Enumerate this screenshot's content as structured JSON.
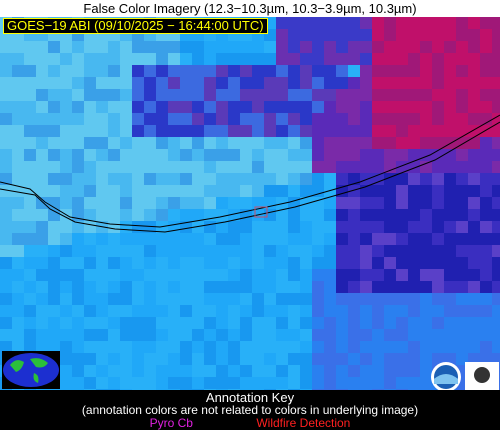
{
  "title": "False Color Imagery (12.3−10.3µm, 10.3−3.9µm, 10.3µm)",
  "image_label": "GOES−19 ABI (09/10/2025 − 16:44:00 UTC)",
  "annotation_key": {
    "title": "Annotation Key",
    "note": "(annotation colors are not related to colors in underlying image)",
    "items": [
      "Pyro Cb",
      "Wildfire Detection"
    ]
  }
}
